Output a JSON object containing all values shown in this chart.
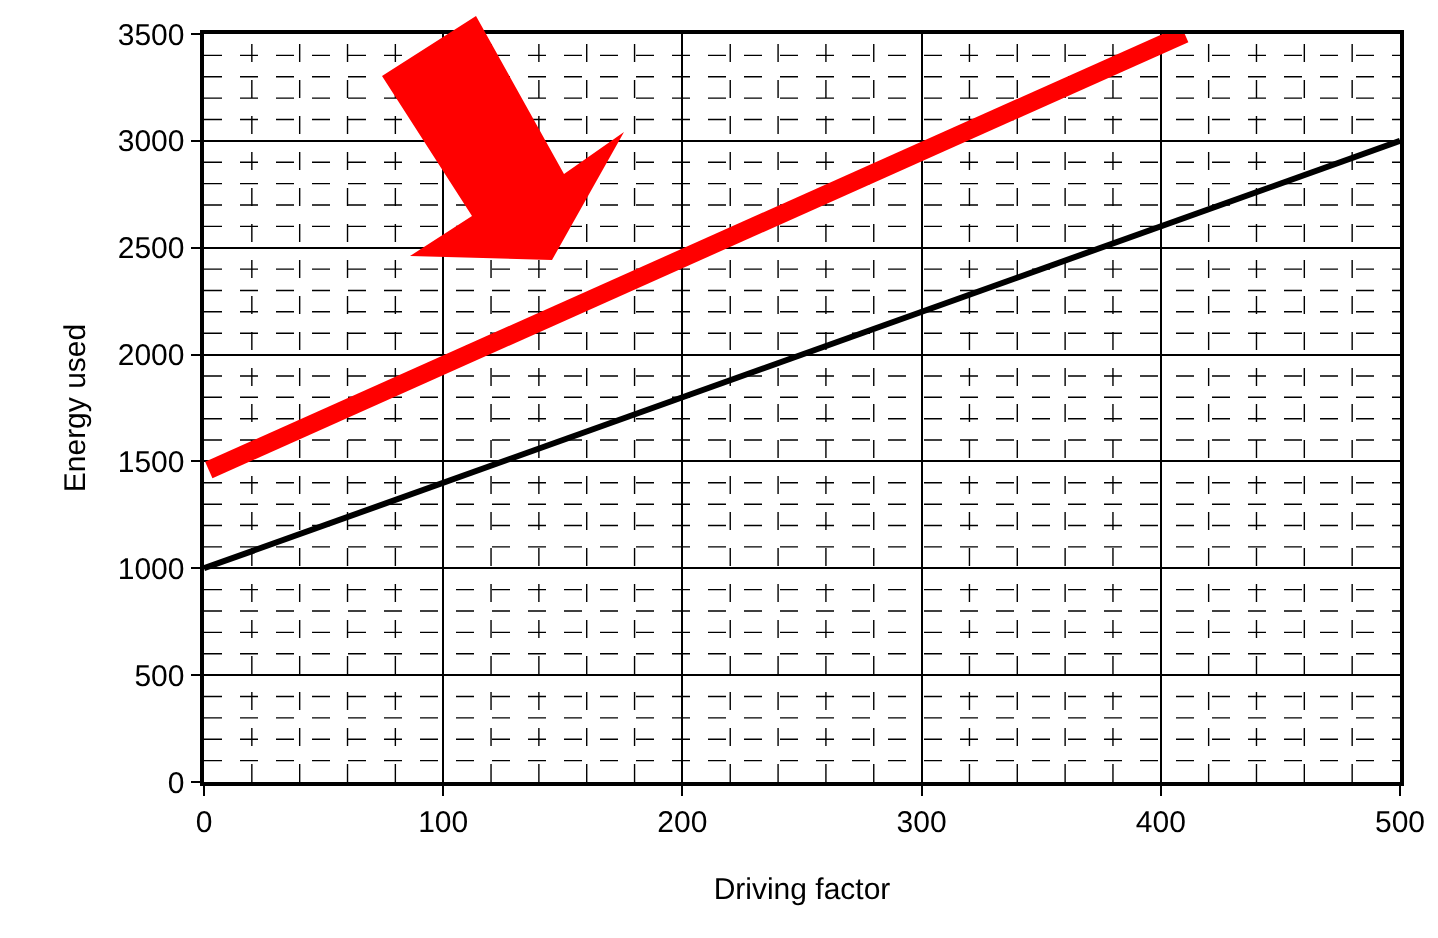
{
  "chart_data": {
    "type": "line",
    "xlabel": "Driving factor",
    "ylabel": "Energy used",
    "x": [
      0,
      500
    ],
    "series": [
      {
        "color": "#000000",
        "values": [
          1000,
          3000
        ]
      },
      {
        "color": "#ff0000",
        "x": [
          2,
          410
        ],
        "values": [
          1460,
          3500
        ]
      }
    ],
    "xlim": [
      0,
      500
    ],
    "ylim": [
      0,
      3500
    ],
    "xticks": [
      0,
      {
        "value": 20,
        "label": null
      },
      {
        "value": 40,
        "label": null
      },
      {
        "value": 60,
        "label": null
      },
      {
        "value": 80,
        "label": null
      },
      100,
      {
        "value": 120,
        "label": null
      },
      {
        "value": 140,
        "label": null
      },
      {
        "value": 160,
        "label": null
      },
      {
        "value": 180,
        "label": null
      },
      200,
      {
        "value": 220,
        "label": null
      },
      {
        "value": 240,
        "label": null
      },
      {
        "value": 260,
        "label": null
      },
      {
        "value": 280,
        "label": null
      },
      300,
      {
        "value": 320,
        "label": null
      },
      {
        "value": 340,
        "label": null
      },
      {
        "value": 360,
        "label": null
      },
      {
        "value": 380,
        "label": null
      },
      400,
      {
        "value": 420,
        "label": null
      },
      {
        "value": 440,
        "label": null
      },
      {
        "value": 460,
        "label": null
      },
      {
        "value": 480,
        "label": null
      },
      500
    ],
    "yticks": [
      0,
      {
        "value": 100,
        "label": null
      },
      {
        "value": 200,
        "label": null
      },
      {
        "value": 300,
        "label": null
      },
      {
        "value": 400,
        "label": null
      },
      500,
      {
        "value": 600,
        "label": null
      },
      {
        "value": 700,
        "label": null
      },
      {
        "value": 800,
        "label": null
      },
      {
        "value": 900,
        "label": null
      },
      1000,
      {
        "value": 1100,
        "label": null
      },
      {
        "value": 1200,
        "label": null
      },
      {
        "value": 1300,
        "label": null
      },
      {
        "value": 1400,
        "label": null
      },
      1500,
      {
        "value": 1600,
        "label": null
      },
      {
        "value": 1700,
        "label": null
      },
      {
        "value": 1800,
        "label": null
      },
      {
        "value": 1900,
        "label": null
      },
      2000,
      {
        "value": 2100,
        "label": null
      },
      {
        "value": 2200,
        "label": null
      },
      {
        "value": 2300,
        "label": null
      },
      {
        "value": 2400,
        "label": null
      },
      2500,
      {
        "value": 2600,
        "label": null
      },
      {
        "value": 2700,
        "label": null
      },
      {
        "value": 2800,
        "label": null
      },
      {
        "value": 2900,
        "label": null
      },
      3000,
      {
        "value": 3100,
        "label": null
      },
      {
        "value": 3200,
        "label": null
      },
      {
        "value": 3300,
        "label": null
      },
      {
        "value": 3400,
        "label": null
      },
      3500
    ],
    "grid": true,
    "marker": "none",
    "line_style": "solid"
  }
}
